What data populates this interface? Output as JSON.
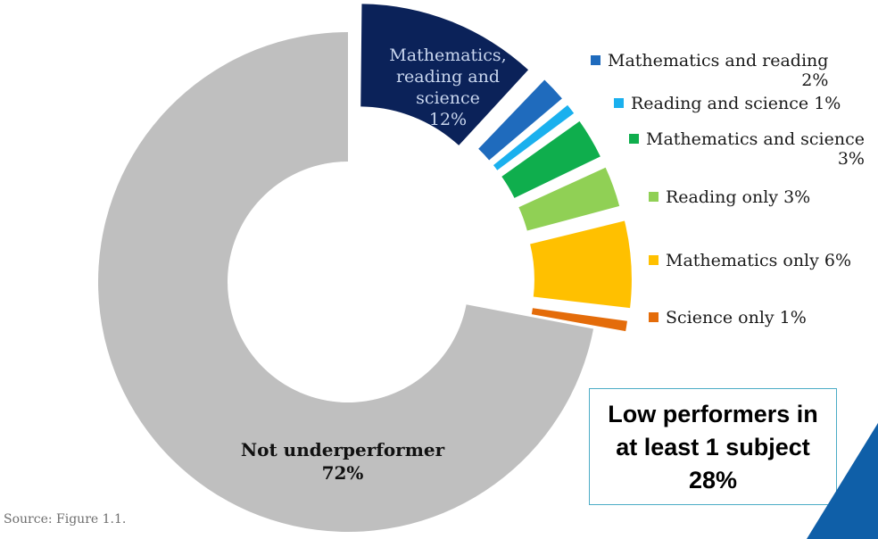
{
  "chart_data": {
    "type": "donut",
    "slices": [
      {
        "label": "Mathematics, reading and science 12%",
        "value": 12,
        "color": "#0b2259"
      },
      {
        "label": "Mathematics and reading 2%",
        "value": 2,
        "color": "#1f6bbd"
      },
      {
        "label": "Reading and science 1%",
        "value": 1,
        "color": "#1ab0ee"
      },
      {
        "label": "Mathematics and science 3%",
        "value": 3,
        "color": "#0fae4d"
      },
      {
        "label": "Reading only 3%",
        "value": 3,
        "color": "#90d055"
      },
      {
        "label": "Mathematics only 6%",
        "value": 6,
        "color": "#ffc000"
      },
      {
        "label": "Science only 1%",
        "value": 1,
        "color": "#e46c0a"
      },
      {
        "label": "Not underperformer 72%",
        "value": 72,
        "color": "#bfbfbf"
      }
    ],
    "inside_labels": {
      "top_lines": [
        "Mathematics,",
        "reading and",
        "science",
        "12%"
      ],
      "bottom_lines": [
        "Not underperformer",
        "72%"
      ]
    }
  },
  "legend": [
    {
      "line1": "Mathematics and reading",
      "line2": "2%",
      "color": "#1f6bbd"
    },
    {
      "line1": "Reading and science 1%",
      "line2": "",
      "color": "#1ab0ee"
    },
    {
      "line1": "Mathematics and science",
      "line2": "3%",
      "color": "#0fae4d"
    },
    {
      "line1": "Reading only 3%",
      "line2": "",
      "color": "#90d055"
    },
    {
      "line1": "Mathematics only  6%",
      "line2": "",
      "color": "#ffc000"
    },
    {
      "line1": "Science only 1%",
      "line2": "",
      "color": "#e46c0a"
    }
  ],
  "callout": {
    "line1": "Low performers in",
    "line2": "at least 1 subject",
    "line3": "28%",
    "border_color": "#4bacc6"
  },
  "source": "Source: Figure 1.1.",
  "corner_color": "#0f5fa8"
}
